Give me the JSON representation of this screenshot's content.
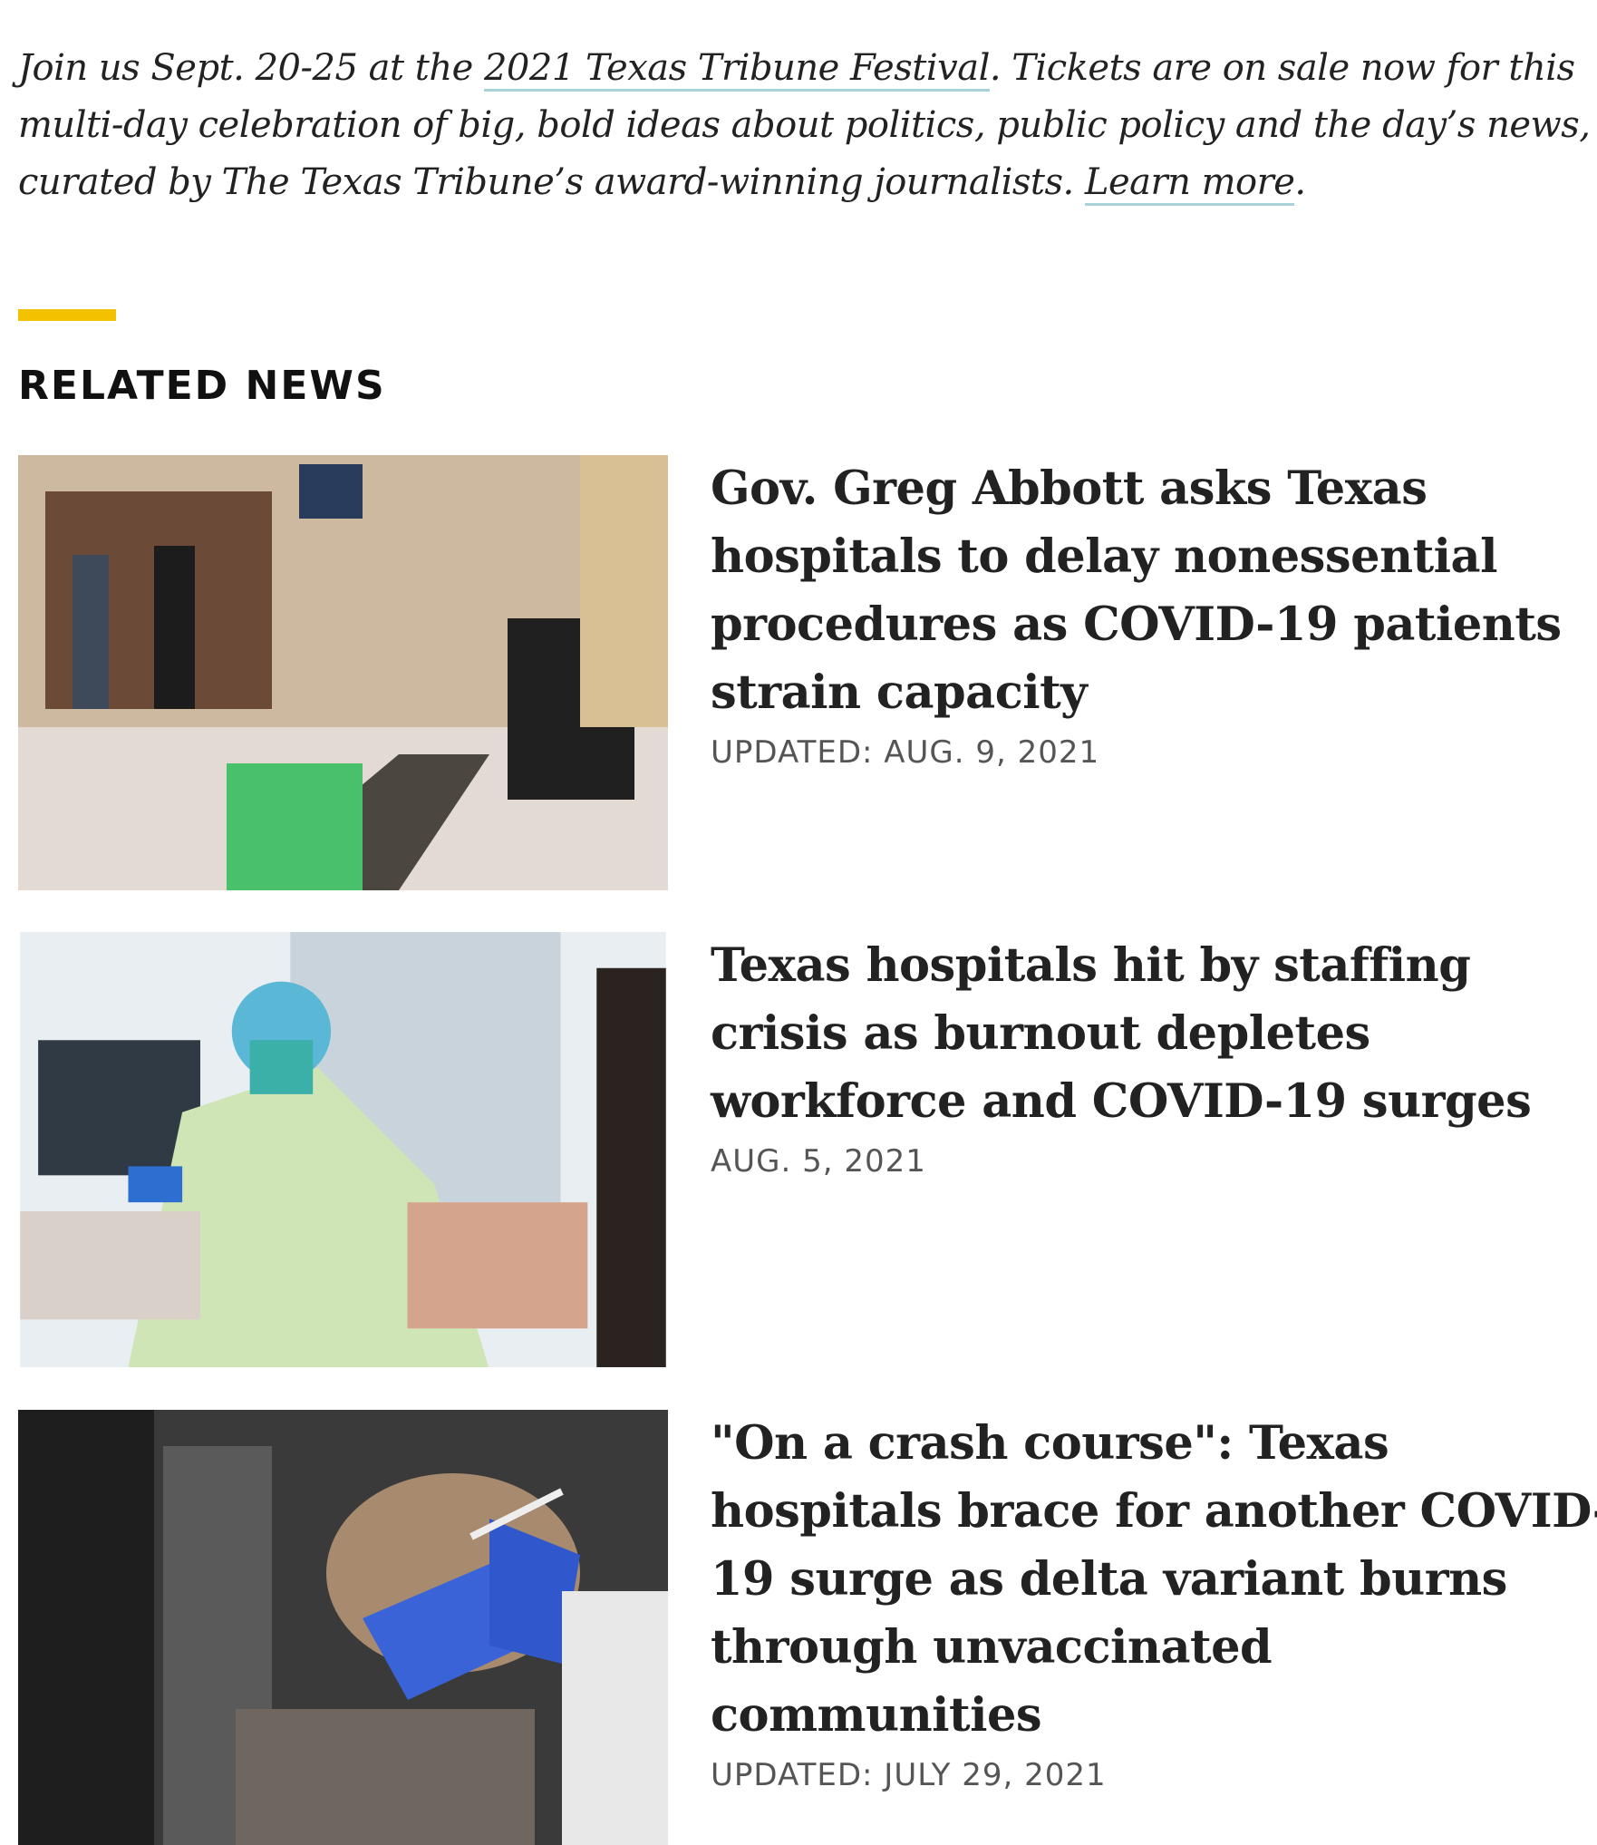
{
  "promo": {
    "before": "Join us Sept. 20-25 at the ",
    "festival_link": "2021 Texas Tribune Festival",
    "middle": ". Tickets are on sale now for this multi-day celebration of big, bold ideas about politics, public policy and the day’s news, curated by The Texas Tribune’s award-winning journalists. ",
    "learn_more_link": "Learn more",
    "after": "."
  },
  "section": {
    "title": "RELATED NEWS"
  },
  "articles": [
    {
      "headline": "Gov. Greg Abbott asks Texas hospitals to delay nonessential procedures as COVID-19 patients strain capacity",
      "date": "UPDATED: AUG. 9, 2021"
    },
    {
      "headline": "Texas hospitals hit by staffing crisis as burnout depletes workforce and COVID-19 surges",
      "date": "AUG. 5, 2021"
    },
    {
      "headline": "\"On a crash course\": Texas hospitals brace for another COVID-19 surge as delta variant burns through unvaccinated communities",
      "date": "UPDATED: JULY 29, 2021"
    }
  ]
}
